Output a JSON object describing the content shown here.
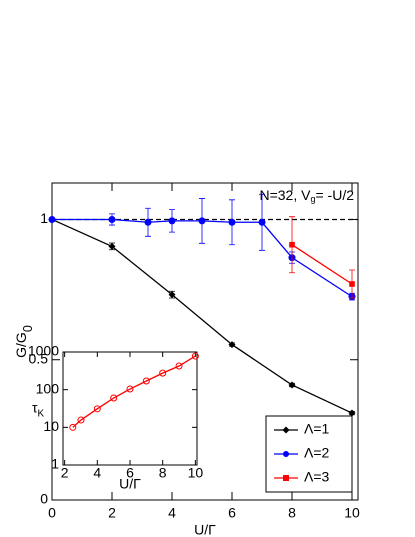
{
  "chart_data": [
    {
      "type": "line",
      "xlabel": "U/Γ",
      "ylabel": {
        "main": "G/G",
        "sub": "0"
      },
      "annotation": {
        "before": "N=32, V",
        "sub": "g",
        "after": "= -U/2"
      },
      "xlim": [
        0,
        10.2
      ],
      "ylim": [
        0,
        1.13
      ],
      "xticks": [
        0,
        2,
        4,
        6,
        8,
        10
      ],
      "yticks": [
        0,
        0.5,
        1
      ],
      "reference_line": 1,
      "legend": "lower right",
      "series": [
        {
          "name": "Λ=1",
          "color": "#000000",
          "marker": "diamond",
          "x": [
            0,
            2,
            4,
            6,
            8,
            10
          ],
          "values": [
            1.0,
            0.904,
            0.732,
            0.554,
            0.41,
            0.31
          ],
          "errors": [
            0,
            0.012,
            0.012,
            0.006,
            0.006,
            0.006
          ]
        },
        {
          "name": "Λ=2",
          "color": "#0000ff",
          "marker": "circle",
          "x": [
            0,
            2,
            3.2,
            4,
            5,
            6,
            7,
            8,
            10
          ],
          "values": [
            1.0,
            1.0,
            0.99,
            0.995,
            0.995,
            0.99,
            0.99,
            0.864,
            0.725
          ],
          "errors": [
            0,
            0.02,
            0.05,
            0.04,
            0.08,
            0.08,
            0.1,
            0.02,
            0.012
          ]
        },
        {
          "name": "Λ=3",
          "color": "#ff0000",
          "marker": "square",
          "x": [
            8,
            10
          ],
          "values": [
            0.91,
            0.77
          ],
          "errors": [
            0.1,
            0.05
          ]
        }
      ]
    },
    {
      "type": "line",
      "xlabel": "U/Γ",
      "ylabel": {
        "main": "τ",
        "sub": "K"
      },
      "xlim": [
        1.9,
        10.1
      ],
      "ylim": [
        1,
        1000
      ],
      "log_y": true,
      "xticks": [
        2,
        4,
        6,
        8,
        10
      ],
      "yticks": [
        1,
        10,
        100,
        1000
      ],
      "series": [
        {
          "color": "#ff0000",
          "marker": "open-circle",
          "x": [
            2.5,
            3,
            4,
            5,
            6,
            7,
            8,
            9,
            10
          ],
          "values": [
            10,
            15.6,
            31,
            60,
            104,
            170,
            275,
            425,
            780
          ]
        }
      ]
    }
  ]
}
